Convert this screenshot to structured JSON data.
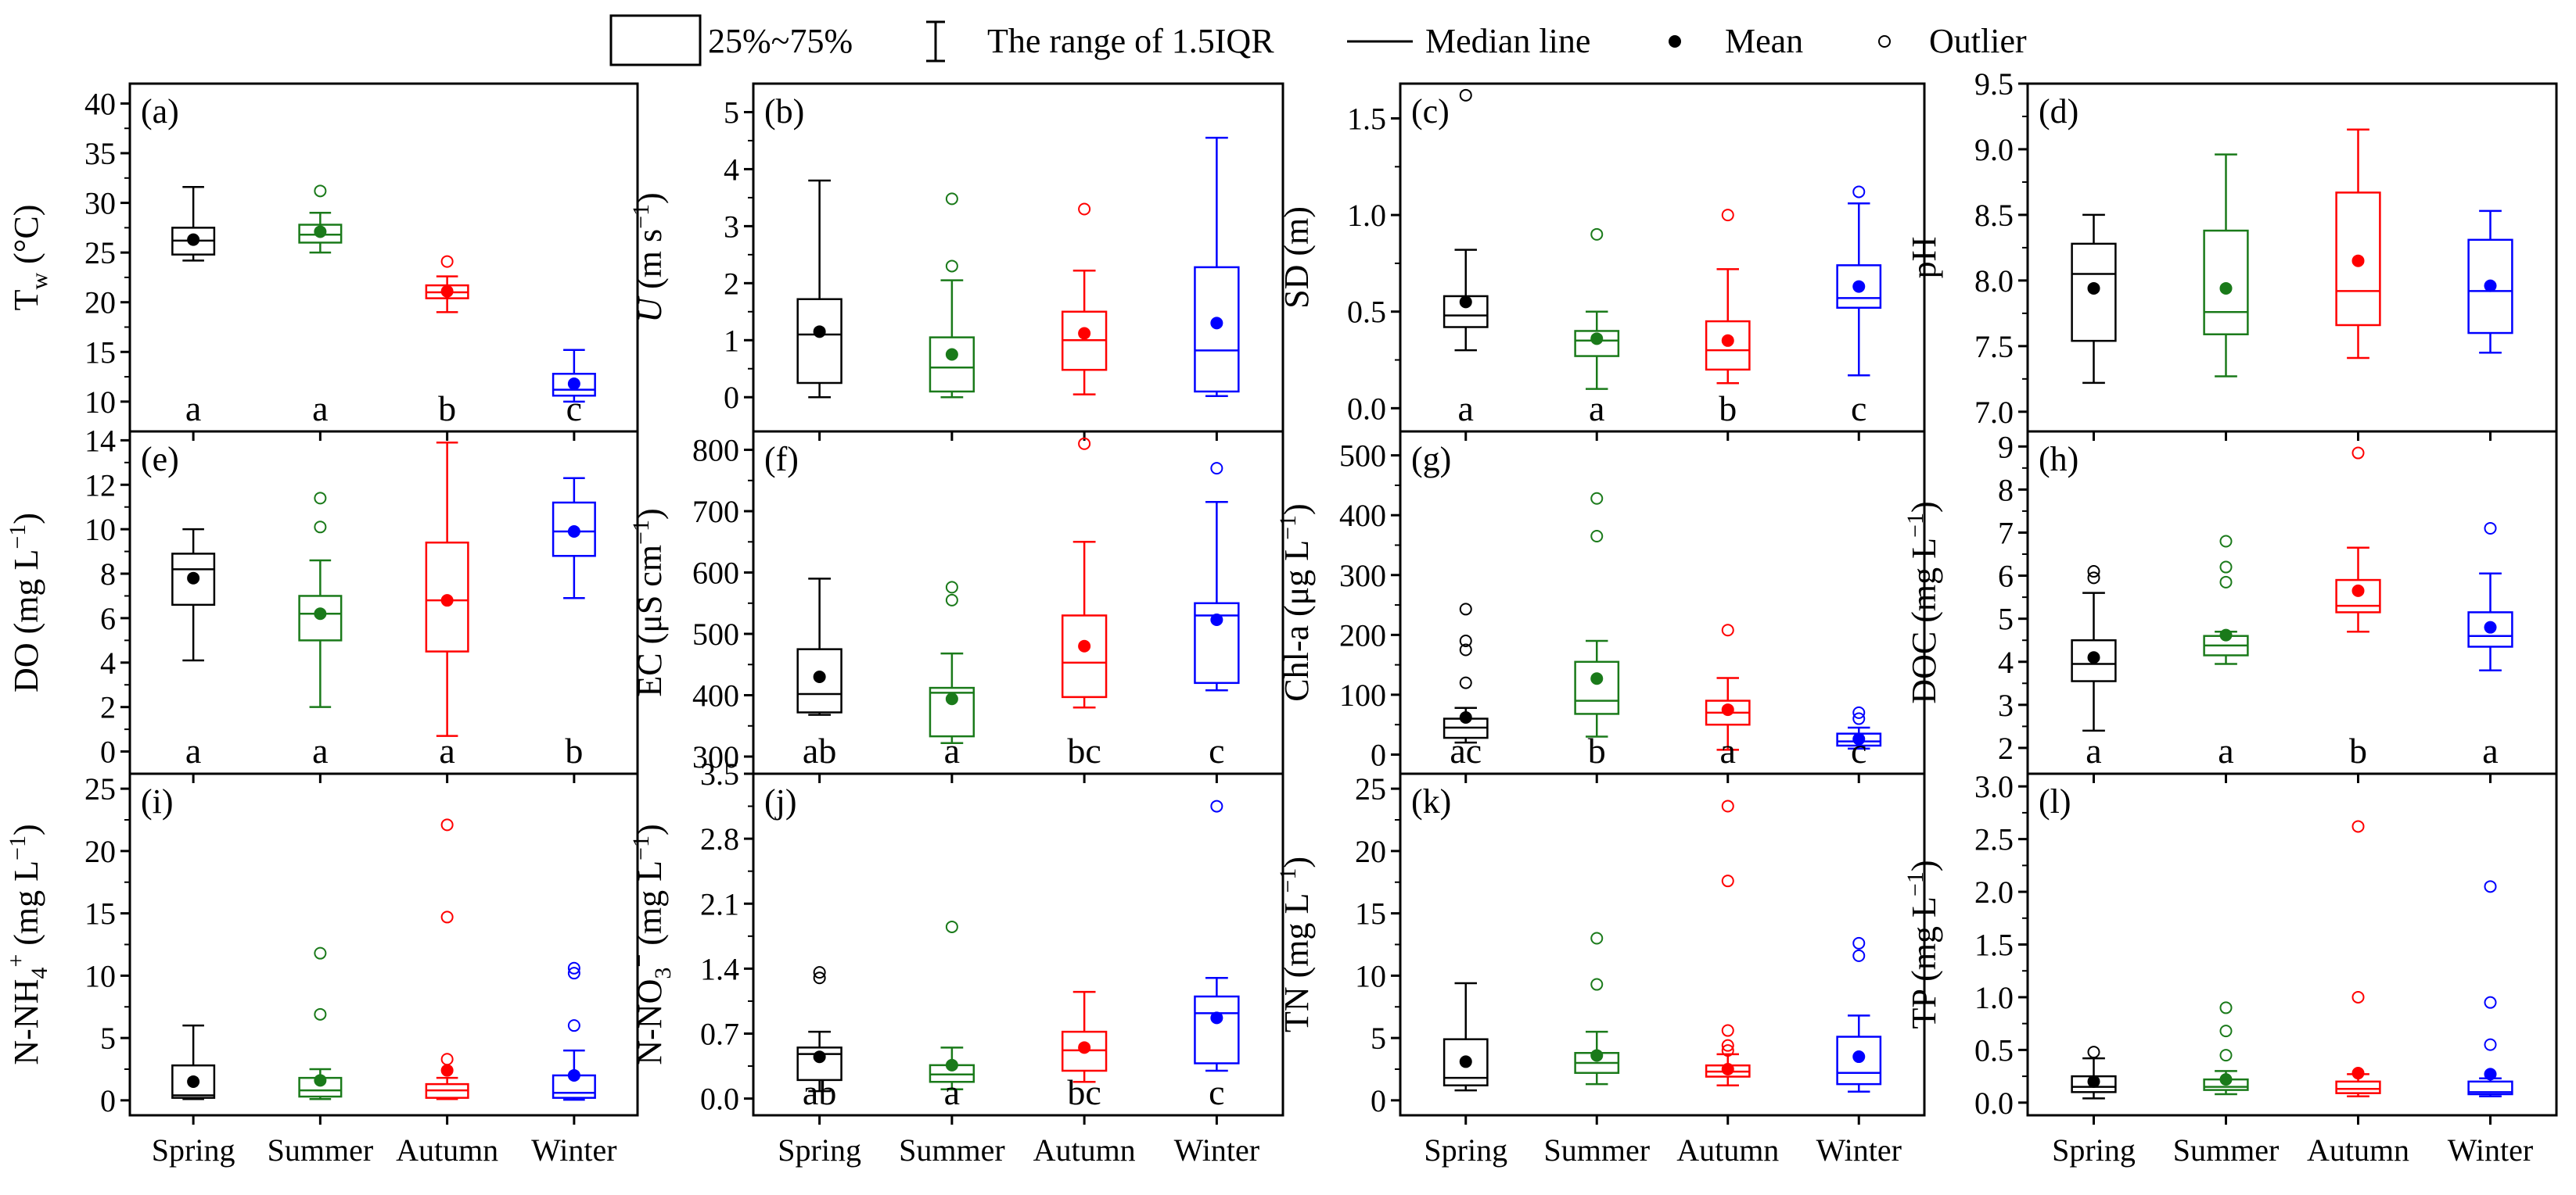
{
  "legend": {
    "box_label": "25%~75%",
    "range_label": "The range of 1.5IQR",
    "median_label": "Median line",
    "mean_label": "Mean",
    "outlier_label": "Outlier"
  },
  "colors": {
    "Spring": "#000000",
    "Summer": "#1a7a1a",
    "Autumn": "#ff0000",
    "Winter": "#0000ff"
  },
  "chart_data": [
    {
      "type": "box",
      "panel_label": "(a)",
      "ylabel": "Tw (°C)",
      "ylabel_main": "T",
      "ylabel_sub": "w",
      "ylabel_rest": " (°C)",
      "ylim": [
        7,
        42
      ],
      "yticks": [
        10,
        15,
        20,
        25,
        30,
        35,
        40
      ],
      "categories": [
        "Spring",
        "Summer",
        "Autumn",
        "Winter"
      ],
      "show_xticklabels": false,
      "letters": [
        "a",
        "a",
        "b",
        "c"
      ],
      "boxes": [
        {
          "min": 24.2,
          "q1": 24.8,
          "median": 26.2,
          "q3": 27.5,
          "max": 31.6,
          "mean": 26.3,
          "outliers": []
        },
        {
          "min": 25.0,
          "q1": 26.0,
          "median": 26.8,
          "q3": 27.8,
          "max": 29.0,
          "mean": 27.1,
          "outliers": [
            31.2
          ]
        },
        {
          "min": 19.0,
          "q1": 20.4,
          "median": 21.0,
          "q3": 21.7,
          "max": 22.6,
          "mean": 21.1,
          "outliers": [
            24.1
          ]
        },
        {
          "min": 10.0,
          "q1": 10.6,
          "median": 11.2,
          "q3": 12.8,
          "max": 15.2,
          "mean": 11.8,
          "outliers": []
        }
      ]
    },
    {
      "type": "box",
      "panel_label": "(b)",
      "ylabel": "U (m s−1)",
      "ylabel_main": "U",
      "ylabel_italic": true,
      "ylabel_rest": " (m s",
      "ylabel_sup": "−1",
      "ylabel_end": ")",
      "ylim": [
        -0.6,
        5.5
      ],
      "yticks": [
        0,
        1,
        2,
        3,
        4,
        5
      ],
      "categories": [
        "Spring",
        "Summer",
        "Autumn",
        "Winter"
      ],
      "show_xticklabels": false,
      "letters": [
        "",
        "",
        "",
        ""
      ],
      "boxes": [
        {
          "min": 0.0,
          "q1": 0.25,
          "median": 1.1,
          "q3": 1.72,
          "max": 3.8,
          "mean": 1.15,
          "outliers": []
        },
        {
          "min": 0.0,
          "q1": 0.1,
          "median": 0.52,
          "q3": 1.05,
          "max": 2.05,
          "mean": 0.75,
          "outliers": [
            2.3,
            3.48
          ]
        },
        {
          "min": 0.05,
          "q1": 0.48,
          "median": 1.0,
          "q3": 1.5,
          "max": 2.22,
          "mean": 1.12,
          "outliers": [
            3.3
          ]
        },
        {
          "min": 0.02,
          "q1": 0.1,
          "median": 0.82,
          "q3": 2.28,
          "max": 4.55,
          "mean": 1.3,
          "outliers": []
        }
      ]
    },
    {
      "type": "box",
      "panel_label": "(c)",
      "ylabel": "SD (m)",
      "ylabel_main": "SD (m)",
      "ylim": [
        -0.12,
        1.68
      ],
      "yticks": [
        0.0,
        0.5,
        1.0,
        1.5
      ],
      "tick_decimals": 1,
      "categories": [
        "Spring",
        "Summer",
        "Autumn",
        "Winter"
      ],
      "show_xticklabels": false,
      "letters": [
        "a",
        "a",
        "b",
        "c"
      ],
      "boxes": [
        {
          "min": 0.3,
          "q1": 0.42,
          "median": 0.48,
          "q3": 0.58,
          "max": 0.82,
          "mean": 0.55,
          "outliers": [
            1.62
          ]
        },
        {
          "min": 0.1,
          "q1": 0.27,
          "median": 0.35,
          "q3": 0.4,
          "max": 0.5,
          "mean": 0.36,
          "outliers": [
            0.9
          ]
        },
        {
          "min": 0.13,
          "q1": 0.2,
          "median": 0.3,
          "q3": 0.45,
          "max": 0.72,
          "mean": 0.35,
          "outliers": [
            1.0
          ]
        },
        {
          "min": 0.17,
          "q1": 0.52,
          "median": 0.57,
          "q3": 0.74,
          "max": 1.06,
          "mean": 0.63,
          "outliers": [
            1.12
          ]
        }
      ]
    },
    {
      "type": "box",
      "panel_label": "(d)",
      "ylabel": "pH",
      "ylabel_main": "pH",
      "ylim": [
        6.85,
        9.5
      ],
      "yticks": [
        7.0,
        7.5,
        8.0,
        8.5,
        9.0,
        9.5
      ],
      "tick_decimals": 1,
      "categories": [
        "Spring",
        "Summer",
        "Autumn",
        "Winter"
      ],
      "show_xticklabels": false,
      "letters": [
        "",
        "",
        "",
        ""
      ],
      "boxes": [
        {
          "min": 7.22,
          "q1": 7.54,
          "median": 8.05,
          "q3": 8.28,
          "max": 8.5,
          "mean": 7.94,
          "outliers": []
        },
        {
          "min": 7.27,
          "q1": 7.59,
          "median": 7.76,
          "q3": 8.38,
          "max": 8.96,
          "mean": 7.94,
          "outliers": []
        },
        {
          "min": 7.41,
          "q1": 7.66,
          "median": 7.92,
          "q3": 8.67,
          "max": 9.15,
          "mean": 8.15,
          "outliers": []
        },
        {
          "min": 7.45,
          "q1": 7.6,
          "median": 7.92,
          "q3": 8.31,
          "max": 8.53,
          "mean": 7.96,
          "outliers": []
        }
      ]
    },
    {
      "type": "box",
      "panel_label": "(e)",
      "ylabel": "DO (mg L−1)",
      "ylabel_main": "DO (mg L",
      "ylabel_sup": "−1",
      "ylabel_end": ")",
      "ylim": [
        -1.0,
        14.4
      ],
      "yticks": [
        0,
        2,
        4,
        6,
        8,
        10,
        12,
        14
      ],
      "categories": [
        "Spring",
        "Summer",
        "Autumn",
        "Winter"
      ],
      "show_xticklabels": false,
      "letters": [
        "a",
        "a",
        "a",
        "b"
      ],
      "boxes": [
        {
          "min": 4.1,
          "q1": 6.6,
          "median": 8.2,
          "q3": 8.9,
          "max": 10.0,
          "mean": 7.8,
          "outliers": []
        },
        {
          "min": 2.0,
          "q1": 5.0,
          "median": 6.2,
          "q3": 7.0,
          "max": 8.6,
          "mean": 6.2,
          "outliers": [
            10.1,
            11.4
          ]
        },
        {
          "min": 0.7,
          "q1": 4.5,
          "median": 6.8,
          "q3": 9.4,
          "max": 13.9,
          "mean": 6.8,
          "outliers": []
        },
        {
          "min": 6.9,
          "q1": 8.8,
          "median": 9.9,
          "q3": 11.2,
          "max": 12.3,
          "mean": 9.9,
          "outliers": []
        }
      ]
    },
    {
      "type": "box",
      "panel_label": "(f)",
      "ylabel": "EC (μS cm−1)",
      "ylabel_main": "EC (μS cm",
      "ylabel_sup": "−1",
      "ylabel_end": ")",
      "ylim": [
        272,
        830
      ],
      "yticks": [
        300,
        400,
        500,
        600,
        700,
        800
      ],
      "categories": [
        "Spring",
        "Summer",
        "Autumn",
        "Winter"
      ],
      "show_xticklabels": false,
      "letters": [
        "ab",
        "a",
        "bc",
        "c"
      ],
      "boxes": [
        {
          "min": 368,
          "q1": 372,
          "median": 402,
          "q3": 475,
          "max": 590,
          "mean": 430,
          "outliers": []
        },
        {
          "min": 322,
          "q1": 333,
          "median": 404,
          "q3": 412,
          "max": 468,
          "mean": 394,
          "outliers": [
            555,
            576
          ]
        },
        {
          "min": 380,
          "q1": 397,
          "median": 453,
          "q3": 530,
          "max": 650,
          "mean": 480,
          "outliers": [
            810
          ]
        },
        {
          "min": 408,
          "q1": 420,
          "median": 530,
          "q3": 550,
          "max": 715,
          "mean": 523,
          "outliers": [
            770
          ]
        }
      ]
    },
    {
      "type": "box",
      "panel_label": "(g)",
      "ylabel": "Chl-a (μg L−1)",
      "ylabel_main": "Chl-a (μg L",
      "ylabel_sup": "−1",
      "ylabel_end": ")",
      "ylim": [
        -32,
        540
      ],
      "yticks": [
        0,
        100,
        200,
        300,
        400,
        500
      ],
      "categories": [
        "Spring",
        "Summer",
        "Autumn",
        "Winter"
      ],
      "show_xticklabels": false,
      "letters": [
        "ac",
        "b",
        "a",
        "c"
      ],
      "boxes": [
        {
          "min": 20,
          "q1": 28,
          "median": 45,
          "q3": 60,
          "max": 78,
          "mean": 62,
          "outliers": [
            120,
            175,
            190,
            243
          ]
        },
        {
          "min": 30,
          "q1": 68,
          "median": 90,
          "q3": 155,
          "max": 190,
          "mean": 127,
          "outliers": [
            365,
            428
          ]
        },
        {
          "min": 8,
          "q1": 50,
          "median": 70,
          "q3": 90,
          "max": 128,
          "mean": 75,
          "outliers": [
            208
          ]
        },
        {
          "min": 10,
          "q1": 15,
          "median": 22,
          "q3": 35,
          "max": 45,
          "mean": 26,
          "outliers": [
            60,
            70
          ]
        }
      ]
    },
    {
      "type": "box",
      "panel_label": "(h)",
      "ylabel": "DOC (mg L−1)",
      "ylabel_main": "DOC (mg L",
      "ylabel_sup": "−1",
      "ylabel_end": ")",
      "ylim": [
        1.4,
        9.35
      ],
      "yticks": [
        2,
        3,
        4,
        5,
        6,
        7,
        8,
        9
      ],
      "categories": [
        "Spring",
        "Summer",
        "Autumn",
        "Winter"
      ],
      "show_xticklabels": false,
      "letters": [
        "a",
        "a",
        "b",
        "a"
      ],
      "boxes": [
        {
          "min": 2.4,
          "q1": 3.55,
          "median": 3.95,
          "q3": 4.5,
          "max": 5.6,
          "mean": 4.1,
          "outliers": [
            5.95,
            6.1
          ]
        },
        {
          "min": 3.95,
          "q1": 4.15,
          "median": 4.38,
          "q3": 4.6,
          "max": 4.7,
          "mean": 4.62,
          "outliers": [
            5.85,
            6.2,
            6.8
          ]
        },
        {
          "min": 4.7,
          "q1": 5.15,
          "median": 5.3,
          "q3": 5.9,
          "max": 6.65,
          "mean": 5.65,
          "outliers": [
            8.85
          ]
        },
        {
          "min": 3.8,
          "q1": 4.35,
          "median": 4.6,
          "q3": 5.15,
          "max": 6.05,
          "mean": 4.8,
          "outliers": [
            7.1
          ]
        }
      ]
    },
    {
      "type": "box",
      "panel_label": "(i)",
      "ylabel": "N-NH4+ (mg L−1)",
      "ylabel_main": "N-NH",
      "ylabel_sub": "4",
      "ylabel_sup2": "+",
      "ylabel_rest": " (mg L",
      "ylabel_sup": "−1",
      "ylabel_end": ")",
      "ylim": [
        -1.2,
        26.2
      ],
      "yticks": [
        0,
        5,
        10,
        15,
        20,
        25
      ],
      "categories": [
        "Spring",
        "Summer",
        "Autumn",
        "Winter"
      ],
      "show_xticklabels": true,
      "letters": [
        "",
        "",
        "",
        ""
      ],
      "boxes": [
        {
          "min": 0.1,
          "q1": 0.2,
          "median": 0.4,
          "q3": 2.8,
          "max": 6.0,
          "mean": 1.5,
          "outliers": []
        },
        {
          "min": 0.1,
          "q1": 0.3,
          "median": 0.8,
          "q3": 1.8,
          "max": 2.5,
          "mean": 1.6,
          "outliers": [
            6.9,
            11.8
          ]
        },
        {
          "min": 0.1,
          "q1": 0.2,
          "median": 0.8,
          "q3": 1.3,
          "max": 1.8,
          "mean": 2.4,
          "outliers": [
            3.3,
            14.7,
            22.1
          ]
        },
        {
          "min": 0.05,
          "q1": 0.2,
          "median": 0.6,
          "q3": 2.0,
          "max": 4.0,
          "mean": 2.0,
          "outliers": [
            6.0,
            10.2,
            10.6
          ]
        }
      ]
    },
    {
      "type": "box",
      "panel_label": "(j)",
      "ylabel": "N-NO3− (mg L−1)",
      "ylabel_main": "N-NO",
      "ylabel_sub": "3",
      "ylabel_sup2": "−",
      "ylabel_rest": " (mg L",
      "ylabel_sup": "−1",
      "ylabel_end": ")",
      "ylim": [
        -0.18,
        3.5
      ],
      "yticks": [
        0.0,
        0.7,
        1.4,
        2.1,
        2.8,
        3.5
      ],
      "tick_decimals": 1,
      "categories": [
        "Spring",
        "Summer",
        "Autumn",
        "Winter"
      ],
      "show_xticklabels": true,
      "letters": [
        "ab",
        "a",
        "bc",
        "c"
      ],
      "boxes": [
        {
          "min": 0.08,
          "q1": 0.2,
          "median": 0.48,
          "q3": 0.55,
          "max": 0.72,
          "mean": 0.45,
          "outliers": [
            1.3,
            1.36
          ]
        },
        {
          "min": 0.1,
          "q1": 0.18,
          "median": 0.26,
          "q3": 0.36,
          "max": 0.55,
          "mean": 0.36,
          "outliers": [
            1.85
          ]
        },
        {
          "min": 0.18,
          "q1": 0.3,
          "median": 0.52,
          "q3": 0.72,
          "max": 1.15,
          "mean": 0.55,
          "outliers": []
        },
        {
          "min": 0.3,
          "q1": 0.38,
          "median": 0.92,
          "q3": 1.1,
          "max": 1.3,
          "mean": 0.87,
          "outliers": [
            3.15
          ]
        }
      ]
    },
    {
      "type": "box",
      "panel_label": "(k)",
      "ylabel": "TN (mg L−1)",
      "ylabel_main": "TN (mg L",
      "ylabel_sup": "−1",
      "ylabel_end": ")",
      "ylim": [
        -1.2,
        26.2
      ],
      "yticks": [
        0,
        5,
        10,
        15,
        20,
        25
      ],
      "categories": [
        "Spring",
        "Summer",
        "Autumn",
        "Winter"
      ],
      "show_xticklabels": true,
      "letters": [
        "",
        "",
        "",
        ""
      ],
      "boxes": [
        {
          "min": 0.8,
          "q1": 1.2,
          "median": 1.8,
          "q3": 4.9,
          "max": 9.4,
          "mean": 3.1,
          "outliers": []
        },
        {
          "min": 1.3,
          "q1": 2.2,
          "median": 3.0,
          "q3": 3.8,
          "max": 5.5,
          "mean": 3.6,
          "outliers": [
            9.3,
            13.0
          ]
        },
        {
          "min": 1.2,
          "q1": 1.9,
          "median": 2.3,
          "q3": 2.8,
          "max": 3.7,
          "mean": 2.5,
          "outliers": [
            4.0,
            4.4,
            5.6,
            17.6,
            23.6
          ]
        },
        {
          "min": 0.7,
          "q1": 1.3,
          "median": 2.2,
          "q3": 5.1,
          "max": 6.8,
          "mean": 3.5,
          "outliers": [
            11.6,
            12.6
          ]
        }
      ]
    },
    {
      "type": "box",
      "panel_label": "(l)",
      "ylabel": "TP (mg L−1)",
      "ylabel_main": "TP (mg L",
      "ylabel_sup": "−1",
      "ylabel_end": ")",
      "ylim": [
        -0.12,
        3.12
      ],
      "yticks": [
        0.0,
        0.5,
        1.0,
        1.5,
        2.0,
        2.5,
        3.0
      ],
      "tick_decimals": 1,
      "categories": [
        "Spring",
        "Summer",
        "Autumn",
        "Winter"
      ],
      "show_xticklabels": true,
      "letters": [
        "",
        "",
        "",
        ""
      ],
      "boxes": [
        {
          "min": 0.04,
          "q1": 0.1,
          "median": 0.15,
          "q3": 0.25,
          "max": 0.42,
          "mean": 0.2,
          "outliers": [
            0.48
          ]
        },
        {
          "min": 0.08,
          "q1": 0.12,
          "median": 0.15,
          "q3": 0.22,
          "max": 0.3,
          "mean": 0.22,
          "outliers": [
            0.45,
            0.68,
            0.9
          ]
        },
        {
          "min": 0.06,
          "q1": 0.09,
          "median": 0.13,
          "q3": 0.2,
          "max": 0.27,
          "mean": 0.28,
          "outliers": [
            1.0,
            2.62
          ]
        },
        {
          "min": 0.06,
          "q1": 0.08,
          "median": 0.1,
          "q3": 0.2,
          "max": 0.23,
          "mean": 0.27,
          "outliers": [
            0.55,
            0.95,
            2.05
          ]
        }
      ]
    }
  ]
}
